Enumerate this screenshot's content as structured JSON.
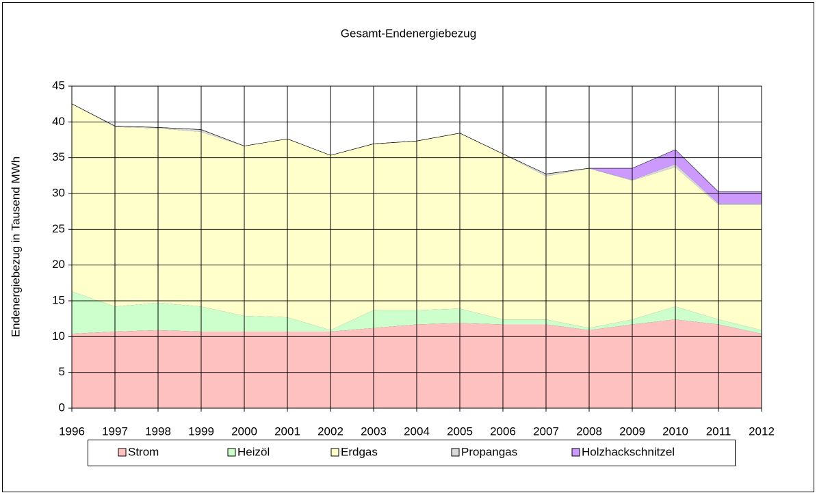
{
  "chart_data": {
    "type": "stacked_area",
    "title": "Gesamt-Endenergiebezug",
    "y_label": "Endenergiebezug in Tausend MWh",
    "categories": [
      "1996",
      "1997",
      "1998",
      "1999",
      "2000",
      "2001",
      "2002",
      "2003",
      "2004",
      "2005",
      "2006",
      "2007",
      "2008",
      "2009",
      "2010",
      "2011",
      "2012"
    ],
    "series": [
      {
        "name": "Strom",
        "color": "#ffc0c0",
        "values": [
          10.4,
          10.7,
          10.9,
          10.7,
          10.7,
          10.7,
          10.7,
          11.2,
          11.7,
          11.9,
          11.7,
          11.7,
          10.9,
          11.7,
          12.4,
          11.7,
          10.4
        ]
      },
      {
        "name": "Heizöl",
        "color": "#ccffcc",
        "values": [
          5.9,
          3.5,
          3.8,
          3.5,
          2.2,
          2.0,
          0.2,
          2.5,
          2.0,
          2.0,
          0.7,
          0.7,
          0.3,
          0.7,
          1.8,
          0.7,
          0.5
        ]
      },
      {
        "name": "Erdgas",
        "color": "#ffffcc",
        "values": [
          26.2,
          25.1,
          24.4,
          24.4,
          23.7,
          24.9,
          24.4,
          23.2,
          23.6,
          24.5,
          23.1,
          20.0,
          22.3,
          19.4,
          19.5,
          16.0,
          17.5
        ]
      },
      {
        "name": "Propangas",
        "color": "#d9d9d9",
        "values": [
          0,
          0.1,
          0.1,
          0.3,
          0,
          0,
          0,
          0,
          0,
          0,
          0,
          0.3,
          0,
          0.1,
          0.4,
          0.2,
          0.2
        ]
      },
      {
        "name": "Holzhackschnitzel",
        "color": "#cc99ff",
        "values": [
          0,
          0,
          0,
          0,
          0,
          0,
          0,
          0,
          0,
          0,
          0,
          0,
          0,
          1.6,
          2.0,
          1.6,
          1.6
        ]
      }
    ],
    "ylim": [
      0,
      45
    ],
    "yticks": [
      0,
      5,
      10,
      15,
      20,
      25,
      30,
      35,
      40,
      45
    ],
    "grid": true,
    "legend": "bottom"
  }
}
